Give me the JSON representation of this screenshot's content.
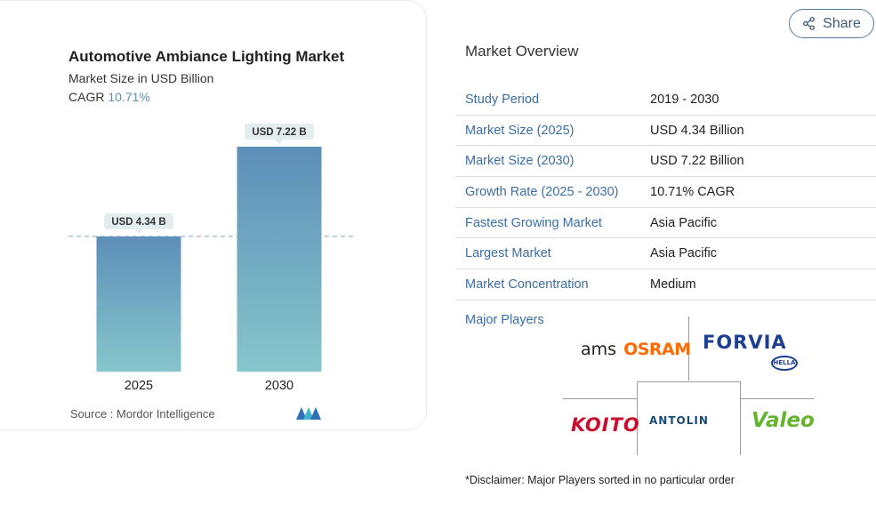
{
  "chart_data": {
    "type": "bar",
    "title": "Automotive Ambiance Lighting Market",
    "subtitle": "Market Size in USD Billion",
    "cagr_label": "CAGR",
    "cagr_value": "10.71%",
    "categories": [
      "2025",
      "2030"
    ],
    "values": [
      4.34,
      7.22
    ],
    "data_labels": [
      "USD 4.34 B",
      "USD 7.22 B"
    ],
    "ylim": [
      0,
      7.22
    ],
    "grid": false,
    "colors": {
      "bar_top": "#5d8fb8",
      "bar_bottom": "#86c6cb",
      "label_bg": "#e3ecef",
      "dash": "#7fa5c1"
    }
  },
  "source": "Source :  Mordor Intelligence",
  "share": {
    "label": "Share"
  },
  "overview": {
    "title": "Market Overview",
    "rows": [
      {
        "key": "Study Period",
        "value": "2019 - 2030"
      },
      {
        "key": "Market Size (2025)",
        "value": "USD 4.34 Billion"
      },
      {
        "key": "Market Size (2030)",
        "value": "USD 7.22 Billion"
      },
      {
        "key": "Growth Rate (2025 - 2030)",
        "value": "10.71% CAGR"
      },
      {
        "key": "Fastest Growing Market",
        "value": "Asia Pacific"
      },
      {
        "key": "Largest Market",
        "value": "Asia Pacific"
      },
      {
        "key": "Market Concentration",
        "value": "Medium"
      }
    ]
  },
  "major_players": {
    "label": "Major Players",
    "logos": {
      "ams": "ams",
      "osram": "OSRAM",
      "forvia": "FORVIA",
      "hella": "HELLA",
      "koito": "KOITO",
      "antolin": "ANTOLIN",
      "valeo": "Valeo"
    }
  },
  "disclaimer": "*Disclaimer: Major Players sorted in no particular order"
}
